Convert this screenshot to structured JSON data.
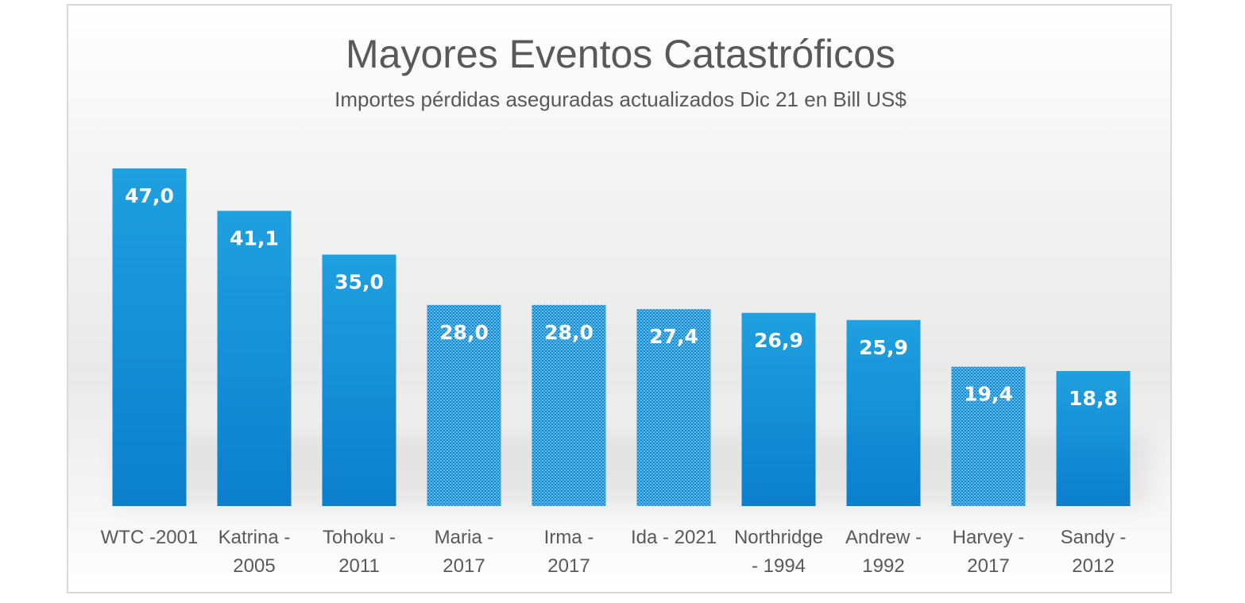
{
  "chart_data": {
    "type": "bar",
    "title": "Mayores Eventos Catastróficos",
    "subtitle": "Importes pérdidas aseguradas actualizados Dic 21 en Bill US$",
    "xlabel": "",
    "ylabel": "",
    "ylim": [
      0,
      47
    ],
    "grid": false,
    "legend": "none",
    "categories": [
      [
        "WTC -2001"
      ],
      [
        "Katrina -",
        "2005"
      ],
      [
        "Tohoku -",
        "2011"
      ],
      [
        "Maria -",
        "2017"
      ],
      [
        "Irma -",
        "2017"
      ],
      [
        "Ida - 2021"
      ],
      [
        "Northridge",
        "- 1994"
      ],
      [
        "Andrew -",
        "1992"
      ],
      [
        "Harvey -",
        "2017"
      ],
      [
        "Sandy -",
        "2012"
      ]
    ],
    "values": [
      47.0,
      41.1,
      35.0,
      28.0,
      28.0,
      27.4,
      26.9,
      25.9,
      19.4,
      18.8
    ],
    "value_labels": [
      "47,0",
      "41,1",
      "35,0",
      "28,0",
      "28,0",
      "27,4",
      "26,9",
      "25,9",
      "19,4",
      "18,8"
    ],
    "patterned": [
      false,
      false,
      false,
      true,
      true,
      true,
      false,
      false,
      true,
      false
    ],
    "colors": {
      "bar_top": "#1fa0e0",
      "bar_bottom": "#0b7fcc",
      "pattern_dot": "#ffffff",
      "text": "#595959",
      "label": "#ffffff"
    }
  }
}
